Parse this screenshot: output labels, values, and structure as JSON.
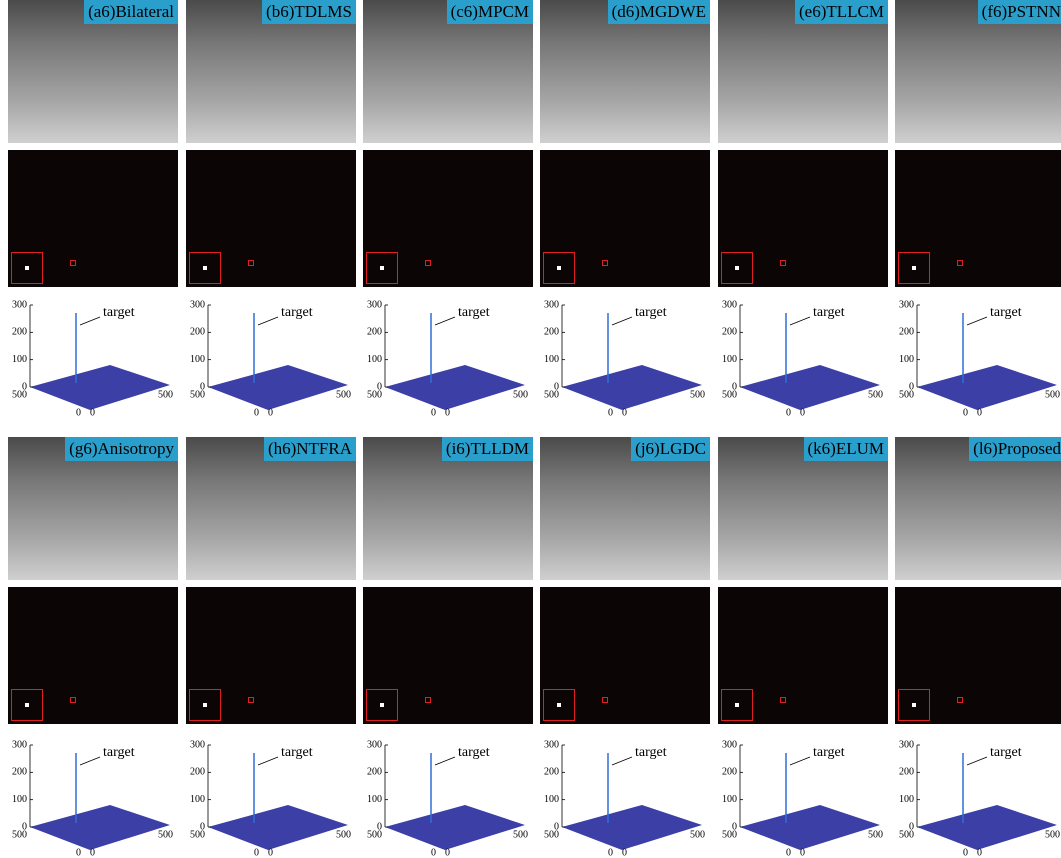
{
  "panels": [
    {
      "label": "(a6)Bilateral"
    },
    {
      "label": "(b6)TDLMS"
    },
    {
      "label": "(c6)MPCM"
    },
    {
      "label": "(d6)MGDWE"
    },
    {
      "label": "(e6)TLLCM"
    },
    {
      "label": "(f6)PSTNN"
    },
    {
      "label": "(g6)Anisotropy"
    },
    {
      "label": "(h6)NTFRA"
    },
    {
      "label": "(i6)TLLDM"
    },
    {
      "label": "(j6)LGDC"
    },
    {
      "label": "(k6)ELUM"
    },
    {
      "label": "(l6)Proposed"
    }
  ],
  "plot_labels": {
    "z_ticks": [
      300,
      200,
      100,
      0
    ],
    "x_ticks": [
      500,
      0
    ],
    "y_ticks": [
      0,
      500
    ],
    "annotation": "target"
  }
}
